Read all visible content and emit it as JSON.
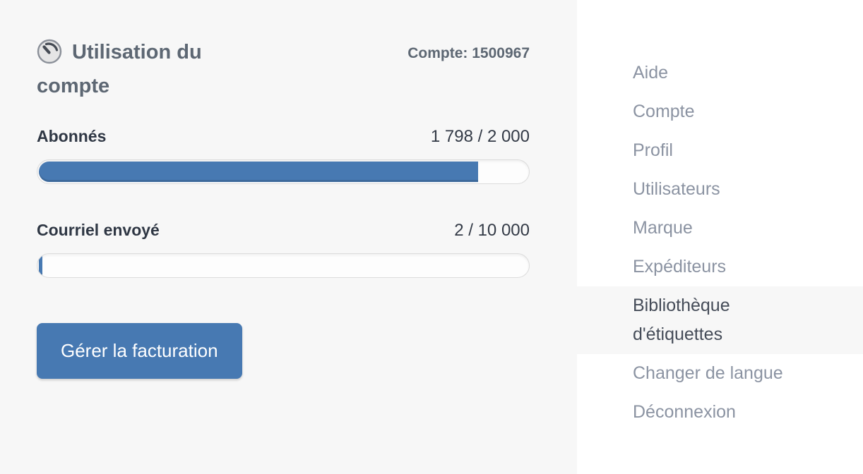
{
  "account_panel": {
    "icon": "gauge-icon",
    "title": "Utilisation du compte",
    "account_number_label": "Compte: 1500967",
    "meters": [
      {
        "label": "Abonnés",
        "value_text": "1 798 / 2 000",
        "used": 1798,
        "limit": 2000,
        "percent": 89.9
      },
      {
        "label": "Courriel envoyé",
        "value_text": "2 / 10 000",
        "used": 2,
        "limit": 10000,
        "percent": 0.02
      }
    ],
    "manage_billing_button": "Gérer la facturation"
  },
  "menu": {
    "items": [
      {
        "label": "Aide",
        "highlighted": false
      },
      {
        "label": "Compte",
        "highlighted": false
      },
      {
        "label": "Profil",
        "highlighted": false
      },
      {
        "label": "Utilisateurs",
        "highlighted": false
      },
      {
        "label": "Marque",
        "highlighted": false
      },
      {
        "label": "Expéditeurs",
        "highlighted": false
      },
      {
        "label": "Bibliothèque d'étiquettes",
        "highlighted": true
      },
      {
        "label": "Changer de langue",
        "highlighted": false
      },
      {
        "label": "Déconnexion",
        "highlighted": false
      }
    ]
  },
  "colors": {
    "accent_blue": "#4779b2",
    "panel_bg": "#f7f7f7",
    "menu_bg": "#ffffff",
    "menu_text": "#8b93a2",
    "menu_text_active": "#454c58",
    "heading_text": "#5d6773",
    "dark_text": "#2f3744",
    "track_border": "#dcdcdc"
  }
}
